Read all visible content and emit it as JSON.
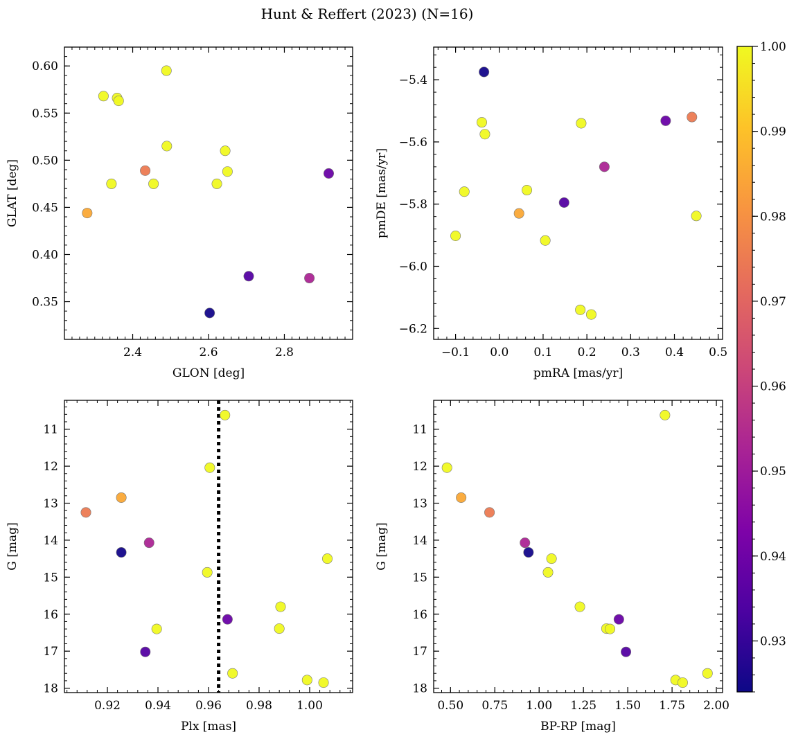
{
  "chart_data": {
    "title": "Hunt & Reffert (2023) (N=16)",
    "type": "scatter",
    "colorbar": {
      "colormap": "plasma",
      "range": [
        0.924,
        1.0
      ],
      "ticks": [
        0.93,
        0.94,
        0.95,
        0.96,
        0.97,
        0.98,
        0.99,
        1.0
      ],
      "tick_labels": [
        "0.93",
        "0.94",
        "0.95",
        "0.96",
        "0.97",
        "0.98",
        "0.99",
        "1.00"
      ]
    },
    "stars": [
      {
        "glon": 2.489,
        "glat": 0.595,
        "pmra": -0.033,
        "pmde": -5.575,
        "plx": 0.9665,
        "g": 10.62,
        "bprp": 1.71,
        "p": 1.0
      },
      {
        "glon": 2.323,
        "glat": 0.568,
        "pmra": -0.04,
        "pmde": -5.537,
        "plx": 0.9605,
        "g": 12.04,
        "bprp": 0.48,
        "p": 1.0
      },
      {
        "glon": 2.359,
        "glat": 0.566,
        "pmra": 0.187,
        "pmde": -5.54,
        "plx": 0.9595,
        "g": 14.87,
        "bprp": 1.05,
        "p": 1.0
      },
      {
        "glon": 2.363,
        "glat": 0.563,
        "pmra": 0.063,
        "pmde": -5.755,
        "plx": 1.007,
        "g": 14.5,
        "bprp": 1.07,
        "p": 1.0
      },
      {
        "glon": 2.49,
        "glat": 0.515,
        "pmra": -0.08,
        "pmde": -5.76,
        "plx": 0.9885,
        "g": 15.8,
        "bprp": 1.23,
        "p": 1.0
      },
      {
        "glon": 2.644,
        "glat": 0.51,
        "pmra": 0.45,
        "pmde": -5.838,
        "plx": 0.988,
        "g": 16.39,
        "bprp": 1.38,
        "p": 1.0
      },
      {
        "glon": 2.65,
        "glat": 0.488,
        "pmra": -0.1,
        "pmde": -5.902,
        "plx": 0.9395,
        "g": 16.4,
        "bprp": 1.4,
        "p": 1.0
      },
      {
        "glon": 2.344,
        "glat": 0.475,
        "pmra": 0.105,
        "pmde": -5.917,
        "plx": 0.9695,
        "g": 17.6,
        "bprp": 1.95,
        "p": 1.0
      },
      {
        "glon": 2.455,
        "glat": 0.475,
        "pmra": 0.185,
        "pmde": -6.14,
        "plx": 0.999,
        "g": 17.78,
        "bprp": 1.77,
        "p": 1.0
      },
      {
        "glon": 2.622,
        "glat": 0.475,
        "pmra": 0.21,
        "pmde": -6.155,
        "plx": 1.0055,
        "g": 17.85,
        "bprp": 1.81,
        "p": 1.0
      },
      {
        "glon": 2.433,
        "glat": 0.489,
        "pmra": 0.44,
        "pmde": -5.52,
        "plx": 0.9115,
        "g": 13.25,
        "bprp": 0.72,
        "p": 0.975
      },
      {
        "glon": 2.28,
        "glat": 0.444,
        "pmra": 0.045,
        "pmde": -5.83,
        "plx": 0.9255,
        "g": 12.85,
        "bprp": 0.56,
        "p": 0.985
      },
      {
        "glon": 2.866,
        "glat": 0.375,
        "pmra": 0.24,
        "pmde": -5.68,
        "plx": 0.9365,
        "g": 14.07,
        "bprp": 0.92,
        "p": 0.953
      },
      {
        "glon": 2.917,
        "glat": 0.486,
        "pmra": 0.38,
        "pmde": -5.532,
        "plx": 0.9675,
        "g": 16.14,
        "bprp": 1.45,
        "p": 0.939
      },
      {
        "glon": 2.706,
        "glat": 0.377,
        "pmra": 0.148,
        "pmde": -5.795,
        "plx": 0.935,
        "g": 17.02,
        "bprp": 1.49,
        "p": 0.935
      },
      {
        "glon": 2.603,
        "glat": 0.338,
        "pmra": -0.035,
        "pmde": -5.375,
        "plx": 0.9255,
        "g": 14.33,
        "bprp": 0.94,
        "p": 0.925
      }
    ],
    "panels": [
      {
        "id": "glon-glat",
        "x": "glon",
        "y": "glat",
        "xlabel": "GLON [deg]",
        "ylabel": "GLAT [deg]",
        "xlim": [
          2.22,
          2.98
        ],
        "ylim": [
          0.31,
          0.62
        ],
        "y_inverted": false,
        "xticks": [
          2.4,
          2.6,
          2.8
        ],
        "xtick_labels": [
          "2.4",
          "2.6",
          "2.8"
        ],
        "yticks": [
          0.35,
          0.4,
          0.45,
          0.5,
          0.55,
          0.6
        ],
        "ytick_labels": [
          "0.35",
          "0.40",
          "0.45",
          "0.50",
          "0.55",
          "0.60"
        ],
        "xminor": 0.02,
        "yminor": 0.01,
        "vline": null
      },
      {
        "id": "pm",
        "x": "pmra",
        "y": "pmde",
        "xlabel": "pmRA [mas/yr]",
        "ylabel": "pmDE [mas/yr]",
        "xlim": [
          -0.15,
          0.51
        ],
        "ylim": [
          -6.235,
          -5.295
        ],
        "y_inverted": false,
        "xticks": [
          -0.1,
          0.0,
          0.1,
          0.2,
          0.3,
          0.4,
          0.5
        ],
        "xtick_labels": [
          "−0.1",
          "0.0",
          "0.1",
          "0.2",
          "0.3",
          "0.4",
          "0.5"
        ],
        "yticks": [
          -6.2,
          -6.0,
          -5.8,
          -5.6,
          -5.4
        ],
        "ytick_labels": [
          "−6.2",
          "−6.0",
          "−5.8",
          "−5.6",
          "−5.4"
        ],
        "xminor": 0.02,
        "yminor": 0.04,
        "vline": null
      },
      {
        "id": "plx-g",
        "x": "plx",
        "y": "g",
        "xlabel": "Plx [mas]",
        "ylabel": "G [mag]",
        "xlim": [
          0.903,
          1.017
        ],
        "ylim": [
          10.22,
          18.12
        ],
        "y_inverted": true,
        "xticks": [
          0.92,
          0.94,
          0.96,
          0.98,
          1.0
        ],
        "xtick_labels": [
          "0.92",
          "0.94",
          "0.96",
          "0.98",
          "1.00"
        ],
        "yticks": [
          11,
          12,
          13,
          14,
          15,
          16,
          17,
          18
        ],
        "ytick_labels": [
          "11",
          "12",
          "13",
          "14",
          "15",
          "16",
          "17",
          "18"
        ],
        "xminor": 0.004,
        "yminor": 0.2,
        "vline": 0.964
      },
      {
        "id": "bprp-g",
        "x": "bprp",
        "y": "g",
        "xlabel": "BP-RP [mag]",
        "ylabel": "G [mag]",
        "xlim": [
          0.405,
          2.035
        ],
        "ylim": [
          10.22,
          18.12
        ],
        "y_inverted": true,
        "xticks": [
          0.5,
          0.75,
          1.0,
          1.25,
          1.5,
          1.75,
          2.0
        ],
        "xtick_labels": [
          "0.50",
          "0.75",
          "1.00",
          "1.25",
          "1.50",
          "1.75",
          "2.00"
        ],
        "yticks": [
          11,
          12,
          13,
          14,
          15,
          16,
          17,
          18
        ],
        "ytick_labels": [
          "11",
          "12",
          "13",
          "14",
          "15",
          "16",
          "17",
          "18"
        ],
        "xminor": 0.05,
        "yminor": 0.2,
        "vline": null
      }
    ]
  }
}
